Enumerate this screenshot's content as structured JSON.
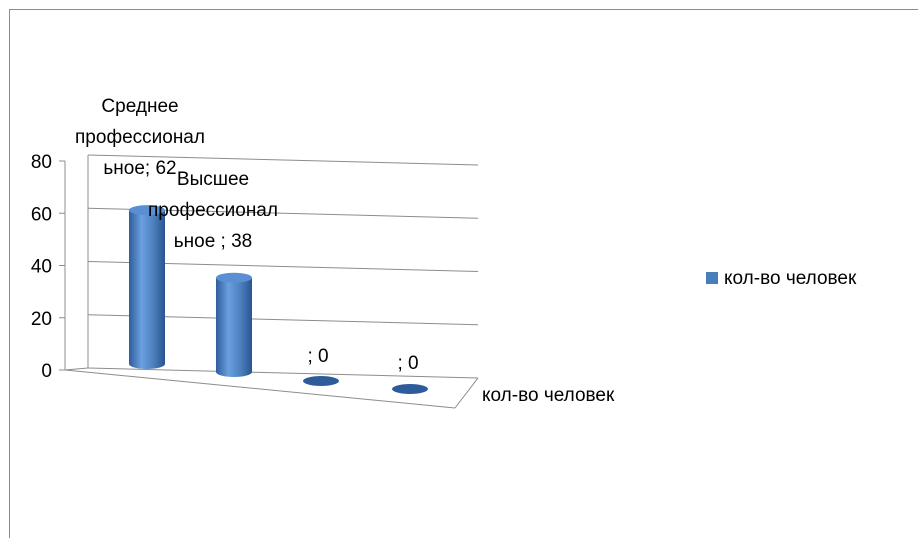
{
  "chart_data": {
    "type": "bar",
    "categories": [
      "Среднее профессиональное",
      "Высшее профессиональное",
      "",
      ""
    ],
    "series": [
      {
        "name": "кол-во человек",
        "values": [
          62,
          38,
          0,
          0
        ]
      }
    ],
    "data_labels": [
      [
        "Среднее",
        "профессионал",
        "ьное; 62"
      ],
      [
        "Высшее",
        "профессионал",
        "ьное ; 38"
      ],
      [
        "; 0"
      ],
      [
        "; 0"
      ]
    ],
    "xlabel": "кол-во человек",
    "ylim": [
      0,
      80
    ],
    "yticks": [
      "0",
      "20",
      "40",
      "60",
      "80"
    ],
    "grid": true,
    "legend_position": "right",
    "legend": {
      "label": "кол-во человек",
      "color": "#4a7ebb"
    },
    "colors": {
      "bar_light": "#5b8fd4",
      "bar_dark": "#2e5c9a",
      "grid": "#8c8c8c"
    }
  }
}
